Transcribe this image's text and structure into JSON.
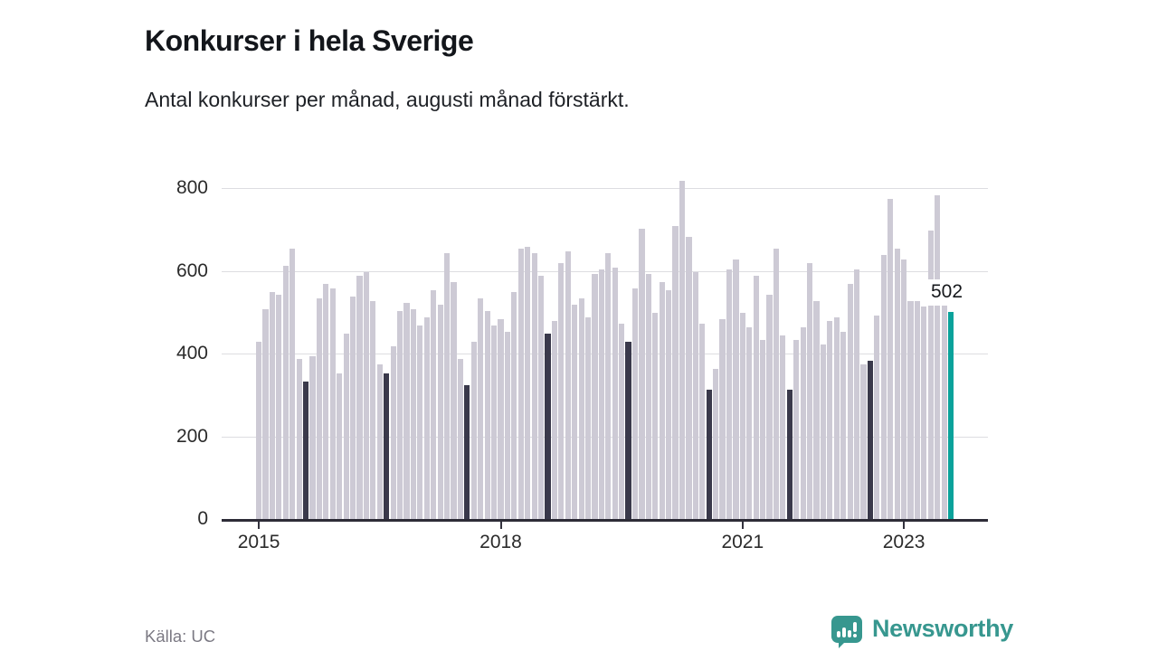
{
  "header": {
    "title": "Konkurser i hela Sverige",
    "subtitle": "Antal konkurser per månad, augusti månad förstärkt."
  },
  "chart_data": {
    "type": "bar",
    "title": "Konkurser i hela Sverige",
    "subtitle": "Antal konkurser per månad, augusti månad förstärkt.",
    "xlabel": "",
    "ylabel": "",
    "ylim": [
      0,
      800
    ],
    "yticks": [
      0,
      200,
      400,
      600,
      800
    ],
    "grid": "horizontal",
    "start_month": "2015-01",
    "end_month": "2023-08",
    "x_ticks": [
      {
        "label": "2015",
        "month_index": 0
      },
      {
        "label": "2018",
        "month_index": 36
      },
      {
        "label": "2021",
        "month_index": 72
      },
      {
        "label": "2023",
        "month_index": 96
      }
    ],
    "values": [
      430,
      510,
      550,
      545,
      615,
      655,
      390,
      335,
      395,
      535,
      570,
      560,
      355,
      450,
      540,
      590,
      600,
      530,
      375,
      355,
      420,
      505,
      525,
      510,
      470,
      490,
      555,
      520,
      645,
      575,
      390,
      325,
      430,
      535,
      505,
      470,
      485,
      455,
      550,
      655,
      660,
      645,
      590,
      450,
      480,
      620,
      650,
      520,
      535,
      490,
      595,
      605,
      645,
      610,
      475,
      430,
      560,
      705,
      595,
      500,
      575,
      555,
      710,
      820,
      685,
      600,
      475,
      315,
      365,
      485,
      605,
      630,
      500,
      465,
      590,
      435,
      545,
      655,
      445,
      315,
      435,
      465,
      620,
      530,
      425,
      480,
      490,
      455,
      570,
      605,
      375,
      385,
      495,
      640,
      775,
      655,
      630,
      530,
      530,
      515,
      700,
      785,
      525,
      502
    ],
    "emphasis": {
      "rule": "august-each-year",
      "month_of_year_index": 7
    },
    "last_bar_annotation": "502",
    "colors": {
      "bar": "#cdcad5",
      "august_bar": "#3a394b",
      "current_bar": "#0aa29b",
      "brand": "#37978f"
    }
  },
  "footer": {
    "source": "Källa: UC",
    "brand": "Newsworthy"
  }
}
